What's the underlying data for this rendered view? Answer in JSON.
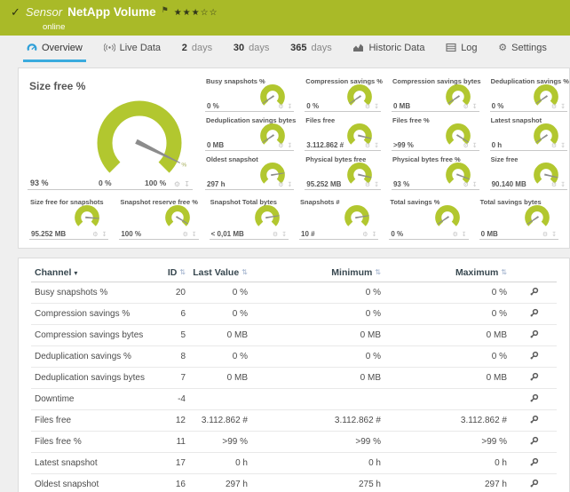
{
  "colors": {
    "header_green": "#a9ba28",
    "gauge_green": "#b2c72f",
    "accent_blue": "#3aabde",
    "needle_gray": "#8c8c8c"
  },
  "header": {
    "kind_label": "Sensor",
    "title": "NetApp Volume",
    "status": "online",
    "priority_stars_filled": 3,
    "priority_stars_total": 5
  },
  "tabs": [
    {
      "label": "Overview",
      "icon": "gauge",
      "active": true
    },
    {
      "label": "Live Data",
      "icon": "broadcast",
      "active": false
    },
    {
      "num": "2",
      "label": "days",
      "active": false
    },
    {
      "num": "30",
      "label": "days",
      "active": false
    },
    {
      "num": "365",
      "label": "days",
      "active": false
    },
    {
      "label": "Historic Data",
      "icon": "chart",
      "active": false
    },
    {
      "label": "Log",
      "icon": "log",
      "active": false
    },
    {
      "label": "Settings",
      "icon": "gear",
      "active": false
    }
  ],
  "gauges": {
    "main": {
      "label": "Size free %",
      "value": "93 %",
      "scale_min": "0 %",
      "scale_max": "100 %",
      "needle_pct": 93,
      "tip_label": "%"
    },
    "grid": [
      {
        "label": "Busy snapshots %",
        "value": "0 %",
        "needle_pct": 4
      },
      {
        "label": "Compression savings %",
        "value": "0 %",
        "needle_pct": 4
      },
      {
        "label": "Compression savings bytes",
        "value": "0 MB",
        "needle_pct": 4
      },
      {
        "label": "Deduplication savings %",
        "value": "0 %",
        "needle_pct": 4
      },
      {
        "label": "Deduplication savings bytes",
        "value": "0 MB",
        "needle_pct": 4
      },
      {
        "label": "Files free",
        "value": "3.112.862 #",
        "needle_pct": 88
      },
      {
        "label": "Files free %",
        "value": ">99 %",
        "needle_pct": 95
      },
      {
        "label": "Latest snapshot",
        "value": "0 h",
        "needle_pct": 4
      },
      {
        "label": "Oldest snapshot",
        "value": "297 h",
        "needle_pct": 80
      },
      {
        "label": "Physical bytes free",
        "value": "95.252 MB",
        "needle_pct": 88
      },
      {
        "label": "Physical bytes free %",
        "value": "93 %",
        "needle_pct": 91
      },
      {
        "label": "Size free",
        "value": "90.140 MB",
        "needle_pct": 88
      }
    ],
    "bottom_row": [
      {
        "label": "Size free for snapshots",
        "value": "95.252 MB",
        "needle_pct": 85
      },
      {
        "label": "Snapshot reserve free %",
        "value": "100 %",
        "needle_pct": 95
      },
      {
        "label": "Snapshot Total bytes",
        "value": "< 0,01 MB",
        "needle_pct": 80
      },
      {
        "label": "Snapshots #",
        "value": "10 #",
        "needle_pct": 80
      },
      {
        "label": "Total savings %",
        "value": "0 %",
        "needle_pct": 4
      },
      {
        "label": "Total savings bytes",
        "value": "0 MB",
        "needle_pct": 4
      }
    ]
  },
  "table": {
    "columns": [
      {
        "label": "Channel",
        "sort": "desc"
      },
      {
        "label": "ID",
        "sort": "both"
      },
      {
        "label": "Last Value",
        "sort": "both"
      },
      {
        "label": "Minimum",
        "sort": "both"
      },
      {
        "label": "Maximum",
        "sort": "both"
      }
    ],
    "rows": [
      {
        "channel": "Busy snapshots %",
        "id": "20",
        "last": "0 %",
        "min": "0 %",
        "max": "0 %"
      },
      {
        "channel": "Compression savings %",
        "id": "6",
        "last": "0 %",
        "min": "0 %",
        "max": "0 %"
      },
      {
        "channel": "Compression savings bytes",
        "id": "5",
        "last": "0 MB",
        "min": "0 MB",
        "max": "0 MB"
      },
      {
        "channel": "Deduplication savings %",
        "id": "8",
        "last": "0 %",
        "min": "0 %",
        "max": "0 %"
      },
      {
        "channel": "Deduplication savings bytes",
        "id": "7",
        "last": "0 MB",
        "min": "0 MB",
        "max": "0 MB"
      },
      {
        "channel": "Downtime",
        "id": "-4",
        "last": "",
        "min": "",
        "max": ""
      },
      {
        "channel": "Files free",
        "id": "12",
        "last": "3.112.862 #",
        "min": "3.112.862 #",
        "max": "3.112.862 #"
      },
      {
        "channel": "Files free %",
        "id": "11",
        "last": ">99 %",
        "min": ">99 %",
        "max": ">99 %"
      },
      {
        "channel": "Latest snapshot",
        "id": "17",
        "last": "0 h",
        "min": "0 h",
        "max": "0 h"
      },
      {
        "channel": "Oldest snapshot",
        "id": "16",
        "last": "297 h",
        "min": "275 h",
        "max": "297 h"
      }
    ]
  }
}
